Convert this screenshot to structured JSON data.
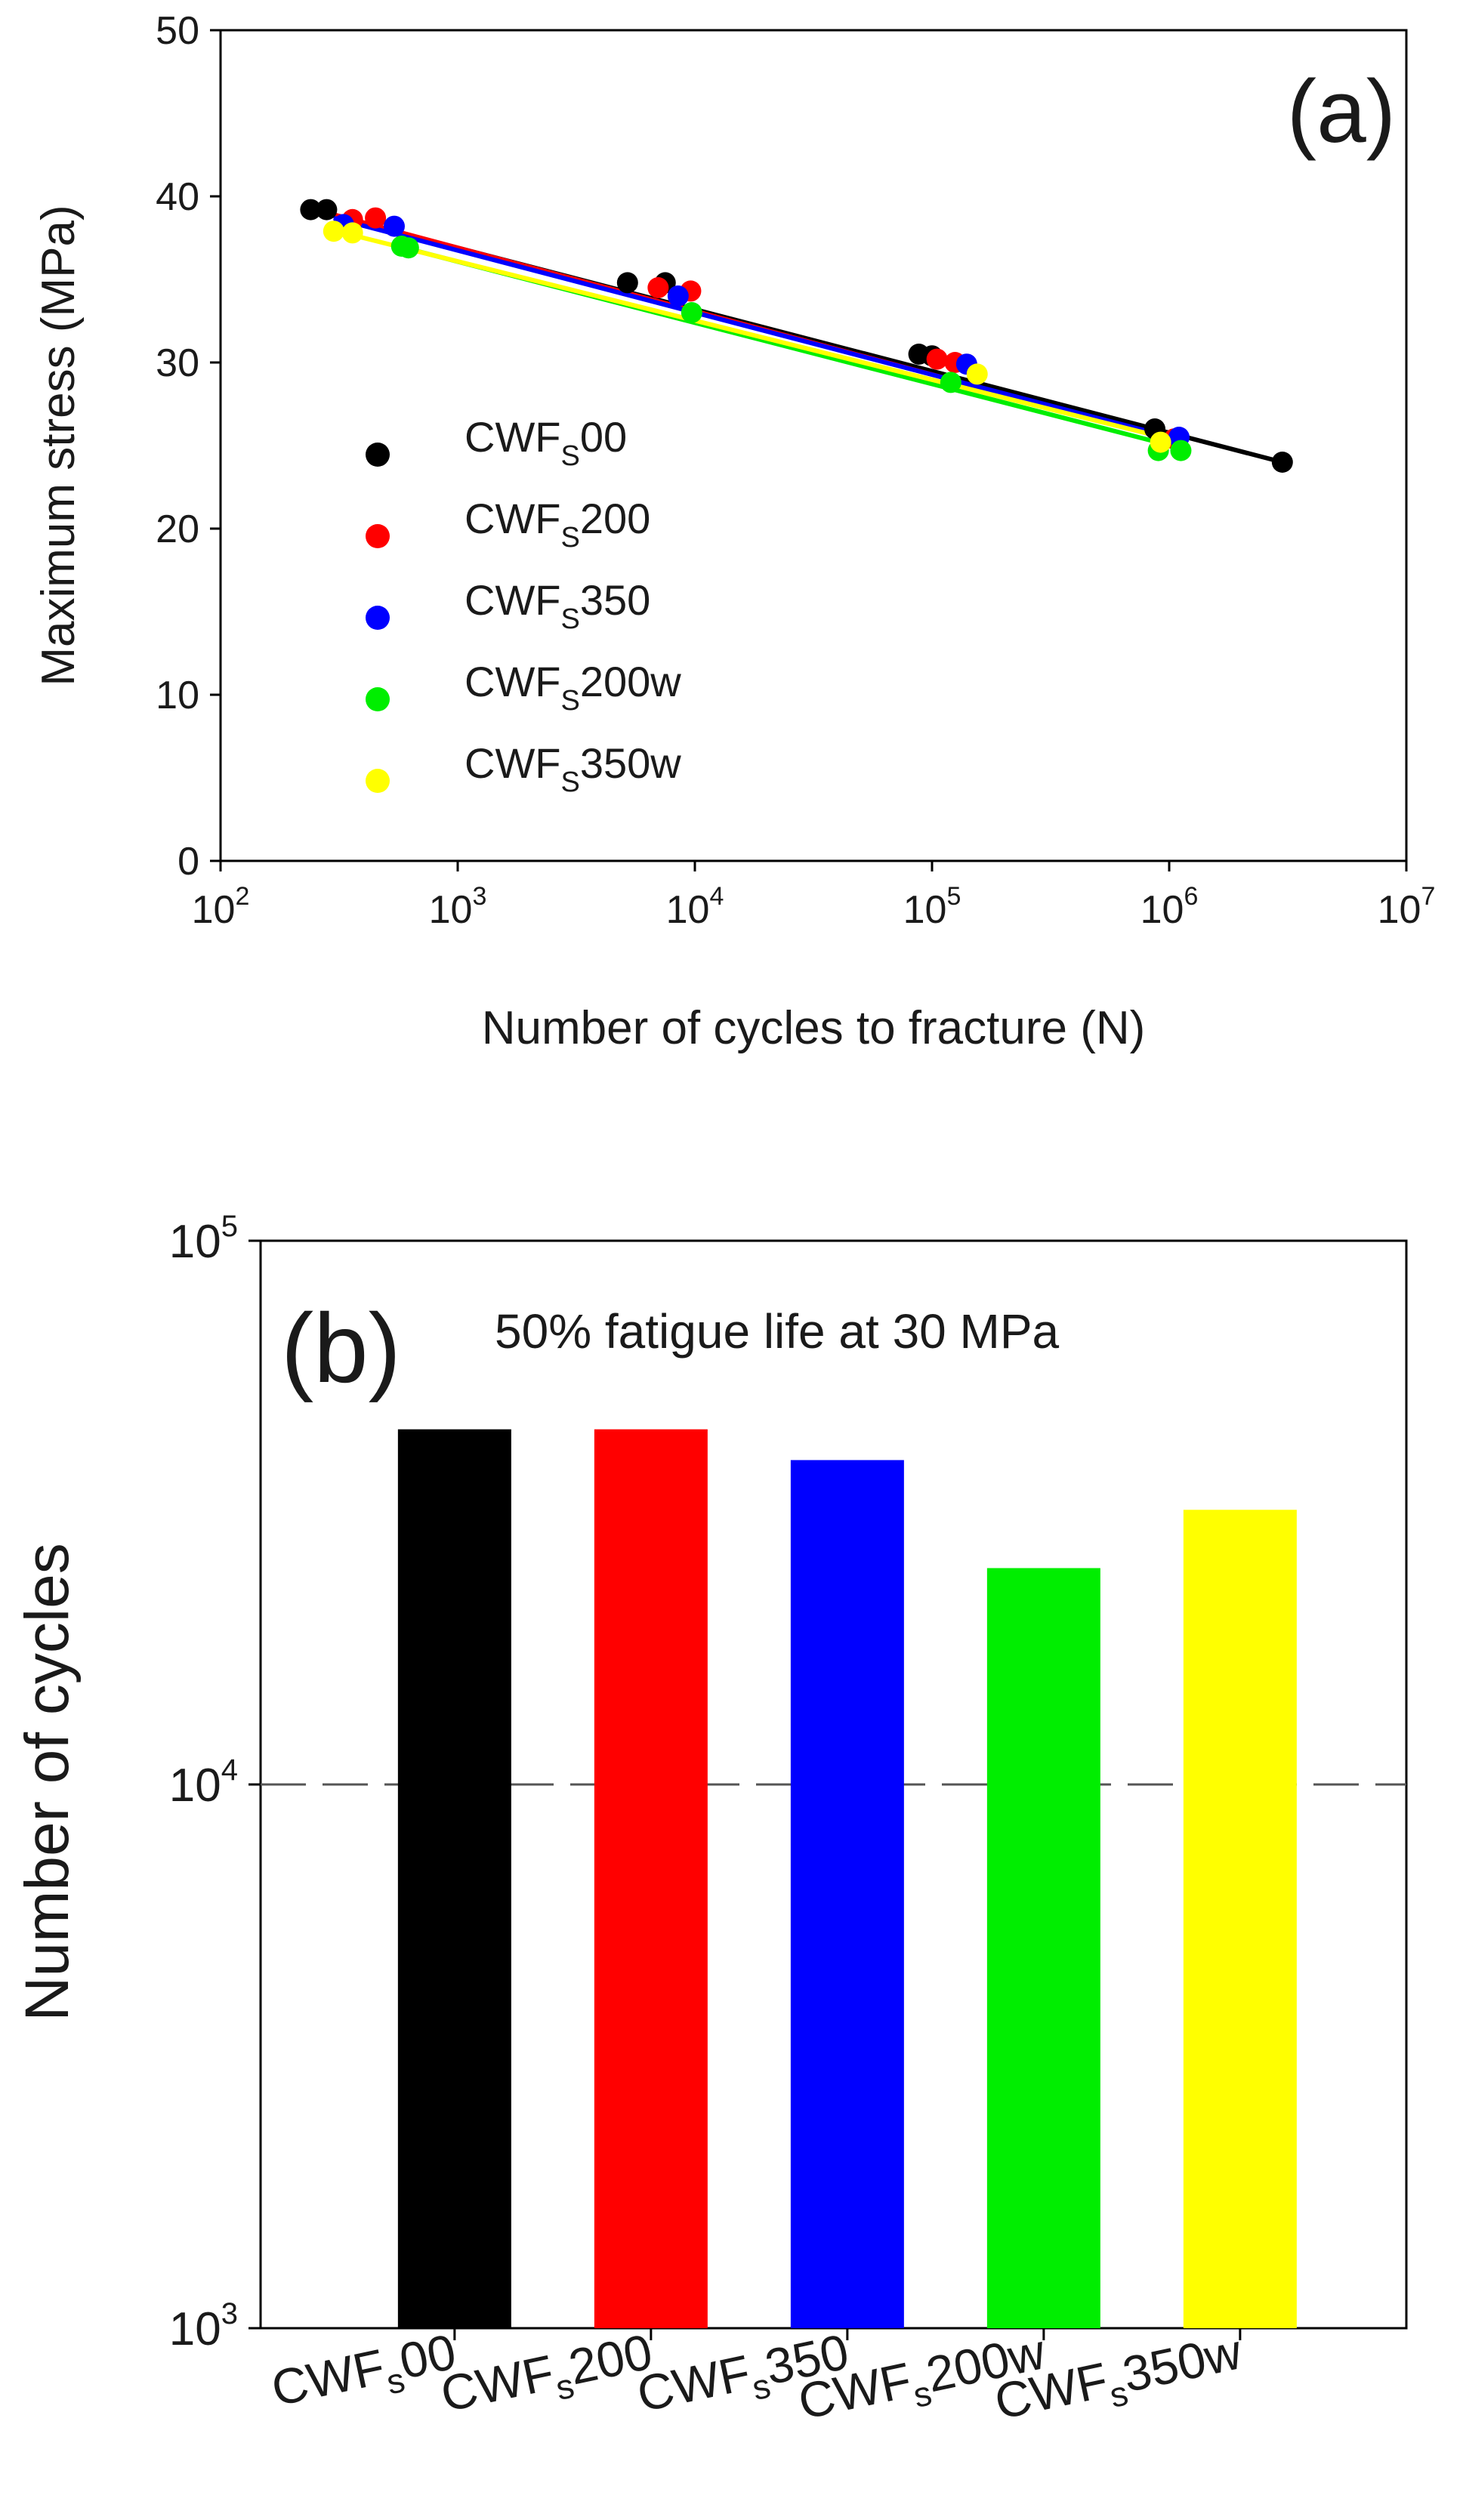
{
  "chart_data": [
    {
      "panel_label": "(a)",
      "type": "scatter",
      "xscale": "log",
      "xlabel": "Number of cycles to fracture (N)",
      "ylabel": "Maximum stress (MPa)",
      "xlim_exp": [
        2,
        7
      ],
      "ylim": [
        0,
        50
      ],
      "yticks": [
        "0",
        "10",
        "20",
        "30",
        "40",
        "50"
      ],
      "xtick_base": "10",
      "xtick_exps": [
        "2",
        "3",
        "4",
        "5",
        "6",
        "7"
      ],
      "legend_position": "center-left",
      "series": [
        {
          "name": "CWFs00",
          "label_main": "CWF",
          "label_sub": "S",
          "label_tail": "00",
          "color": "#000000",
          "points": [
            [
              240,
              39.2
            ],
            [
              280,
              39.2
            ],
            [
              5200,
              34.8
            ],
            [
              7500,
              34.8
            ],
            [
              88000,
              30.5
            ],
            [
              100000,
              30.4
            ],
            [
              870000,
              26.0
            ],
            [
              3000000,
              24.0
            ]
          ],
          "fit": [
            [
              240,
              39.2
            ],
            [
              3000000,
              24.0
            ]
          ]
        },
        {
          "name": "CWFs200",
          "label_main": "CWF",
          "label_sub": "S",
          "label_tail": "200",
          "color": "#ff0000",
          "points": [
            [
              360,
              38.6
            ],
            [
              450,
              38.7
            ],
            [
              7000,
              34.5
            ],
            [
              9600,
              34.3
            ],
            [
              105000,
              30.2
            ],
            [
              125000,
              30.0
            ],
            [
              1050000,
              25.4
            ]
          ],
          "fit": [
            [
              300,
              38.9
            ],
            [
              1100000,
              25.3
            ]
          ]
        },
        {
          "name": "CWFs350",
          "label_main": "CWF",
          "label_sub": "S",
          "label_tail": "350",
          "color": "#0000ff",
          "points": [
            [
              330,
              38.3
            ],
            [
              540,
              38.2
            ],
            [
              8500,
              34.0
            ],
            [
              140000,
              29.9
            ],
            [
              1100000,
              25.5
            ]
          ],
          "fit": [
            [
              300,
              38.7
            ],
            [
              1150000,
              25.3
            ]
          ]
        },
        {
          "name": "CWFs200w",
          "label_main": "CWF",
          "label_sub": "S",
          "label_tail": "200w",
          "color": "#00ee00",
          "points": [
            [
              580,
              37.0
            ],
            [
              620,
              36.9
            ],
            [
              9700,
              33.0
            ],
            [
              120000,
              28.8
            ],
            [
              900000,
              24.7
            ],
            [
              1120000,
              24.7
            ]
          ],
          "fit": [
            [
              560,
              37.0
            ],
            [
              1150000,
              24.8
            ]
          ]
        },
        {
          "name": "CWFs350w",
          "label_main": "CWF",
          "label_sub": "S",
          "label_tail": "350w",
          "color": "#ffff00",
          "points": [
            [
              300,
              37.9
            ],
            [
              360,
              37.8
            ],
            [
              155000,
              29.3
            ],
            [
              920000,
              25.2
            ]
          ],
          "fit": [
            [
              290,
              38.0
            ],
            [
              1000000,
              25.4
            ]
          ]
        }
      ]
    },
    {
      "panel_label": "(b)",
      "type": "bar",
      "title": "50% fatigue life at 30 MPa",
      "yscale": "log",
      "ylabel": "Number of cycles",
      "ylim_exp": [
        3,
        5
      ],
      "ytick_base": "10",
      "ytick_exps": [
        "3",
        "4",
        "5"
      ],
      "reference_line": 10000,
      "categories": [
        {
          "main": "CWF",
          "sub": "s",
          "tail": "00"
        },
        {
          "main": "CWF",
          "sub": "s",
          "tail": "200"
        },
        {
          "main": "CWF",
          "sub": "s",
          "tail": "350"
        },
        {
          "main": "CWF",
          "sub": "s",
          "tail": "200w"
        },
        {
          "main": "CWF",
          "sub": "s",
          "tail": "350w"
        }
      ],
      "values": [
        45000,
        45000,
        39500,
        25000,
        32000
      ],
      "colors": [
        "#000000",
        "#ff0000",
        "#0000ff",
        "#00ee00",
        "#ffff00"
      ]
    }
  ]
}
